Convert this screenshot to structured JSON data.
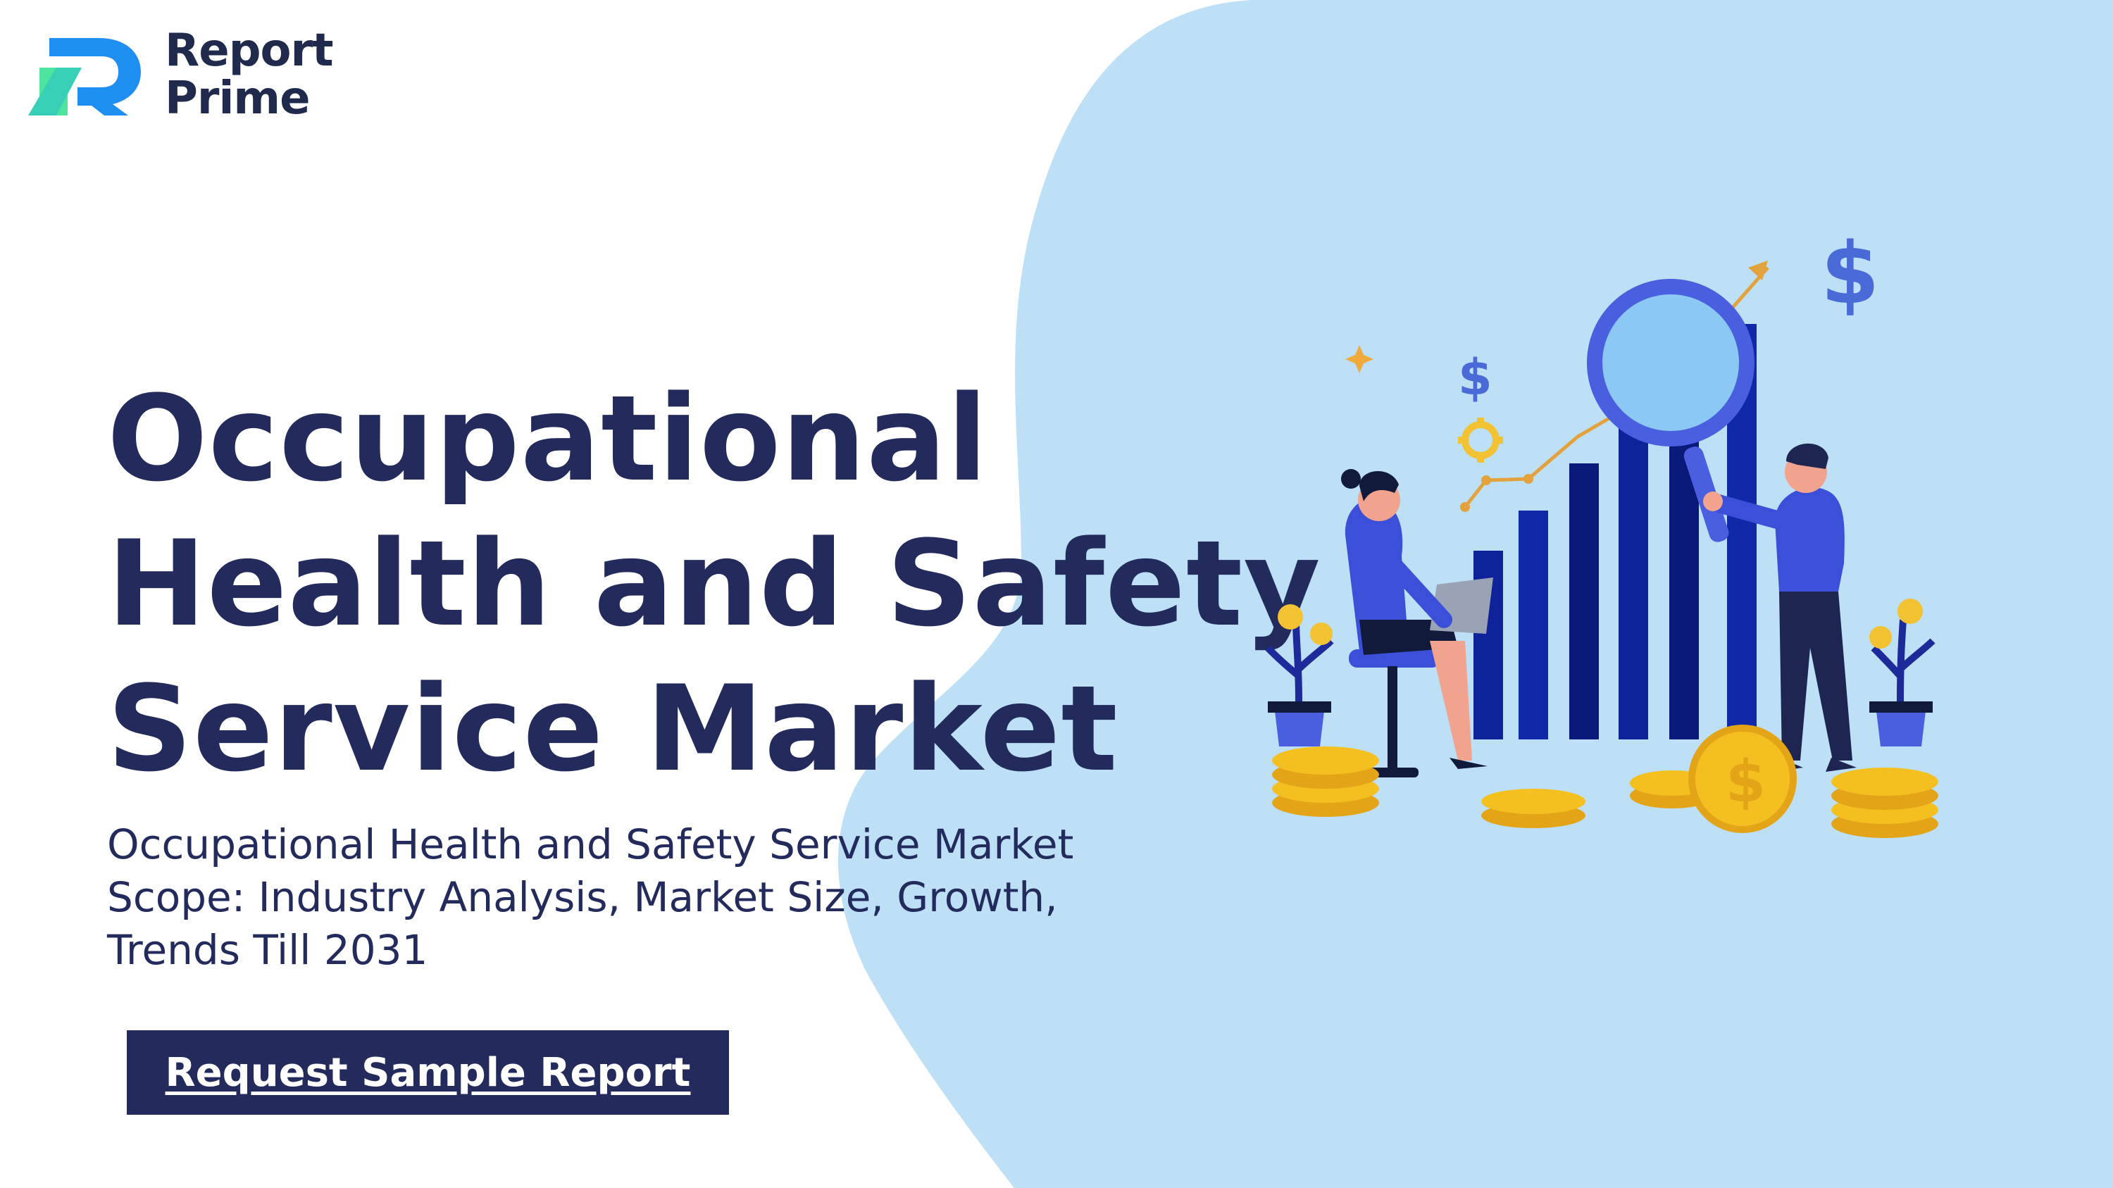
{
  "brand": {
    "line1": "Report",
    "line2": "Prime",
    "colors": {
      "mark_green": "#4fe3a0",
      "mark_blue": "#1f8ef1",
      "text": "#1f2a4d"
    }
  },
  "hero": {
    "title_lines": [
      "Occupational",
      "Health and Safety",
      "Service Market"
    ],
    "subtitle_lines": [
      "Occupational Health and Safety Service Market",
      "Scope: Industry Analysis, Market Size, Growth,",
      "Trends Till 2031"
    ],
    "cta_label": "Request Sample Report"
  },
  "theme": {
    "background": "#ffffff",
    "blob": "#bde0f7",
    "navy": "#232a5c",
    "bar_dark": "#0a1a7a",
    "accent_blue": "#3b4fd8",
    "coin_gold": "#f4c020"
  },
  "illustration": {
    "icons": [
      "bar-chart-icon",
      "magnifier-icon",
      "dollar-icon",
      "coin-stack-icon",
      "plant-icon",
      "gear-icon",
      "trend-arrow-icon"
    ]
  }
}
